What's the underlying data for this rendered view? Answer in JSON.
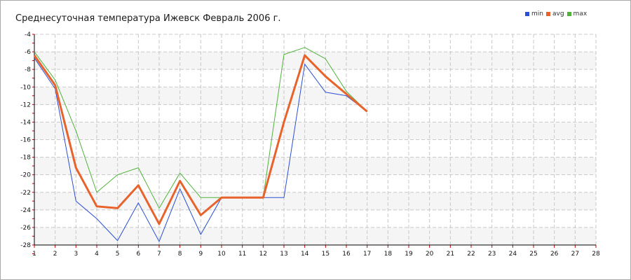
{
  "chart_data": {
    "type": "line",
    "title": "Среднесуточная температура Ижевск  Февраль 2006 г.",
    "xlabel": "",
    "ylabel": "",
    "x": [
      1,
      2,
      3,
      4,
      5,
      6,
      7,
      8,
      9,
      10,
      11,
      12,
      13,
      14,
      15,
      16,
      17
    ],
    "x_ticks": [
      "1",
      "2",
      "3",
      "4",
      "5",
      "6",
      "7",
      "8",
      "9",
      "10",
      "11",
      "12",
      "13",
      "14",
      "15",
      "16",
      "17",
      "18",
      "19",
      "20",
      "21",
      "22",
      "23",
      "24",
      "25",
      "26",
      "27",
      "28"
    ],
    "y_ticks": [
      "-4",
      "-6",
      "-8",
      "-10",
      "-12",
      "-14",
      "-16",
      "-18",
      "-20",
      "-22",
      "-24",
      "-26",
      "-28"
    ],
    "xlim": [
      1,
      28
    ],
    "ylim": [
      -28,
      -4
    ],
    "grid": true,
    "legend_position": "top-right",
    "series": [
      {
        "name": "min",
        "color": "#2b4fd6",
        "values": [
          -6.7,
          -10.2,
          -23.0,
          -25.0,
          -27.5,
          -23.2,
          -27.6,
          -21.6,
          -26.8,
          -22.6,
          -22.6,
          -22.6,
          -22.6,
          -7.4,
          -10.6,
          -11.0,
          -12.8
        ]
      },
      {
        "name": "avg",
        "color": "#e8632c",
        "values": [
          -6.4,
          -9.8,
          -19.2,
          -23.6,
          -23.8,
          -21.2,
          -25.6,
          -20.7,
          -24.6,
          -22.6,
          -22.6,
          -22.6,
          -14.0,
          -6.4,
          -8.8,
          -10.8,
          -12.8
        ]
      },
      {
        "name": "max",
        "color": "#4fb33a",
        "values": [
          -6.0,
          -9.2,
          -15.0,
          -22.0,
          -20.0,
          -19.2,
          -23.8,
          -19.8,
          -22.6,
          -22.6,
          -22.6,
          -22.6,
          -6.3,
          -5.5,
          -6.8,
          -10.5,
          -12.8
        ]
      }
    ]
  }
}
